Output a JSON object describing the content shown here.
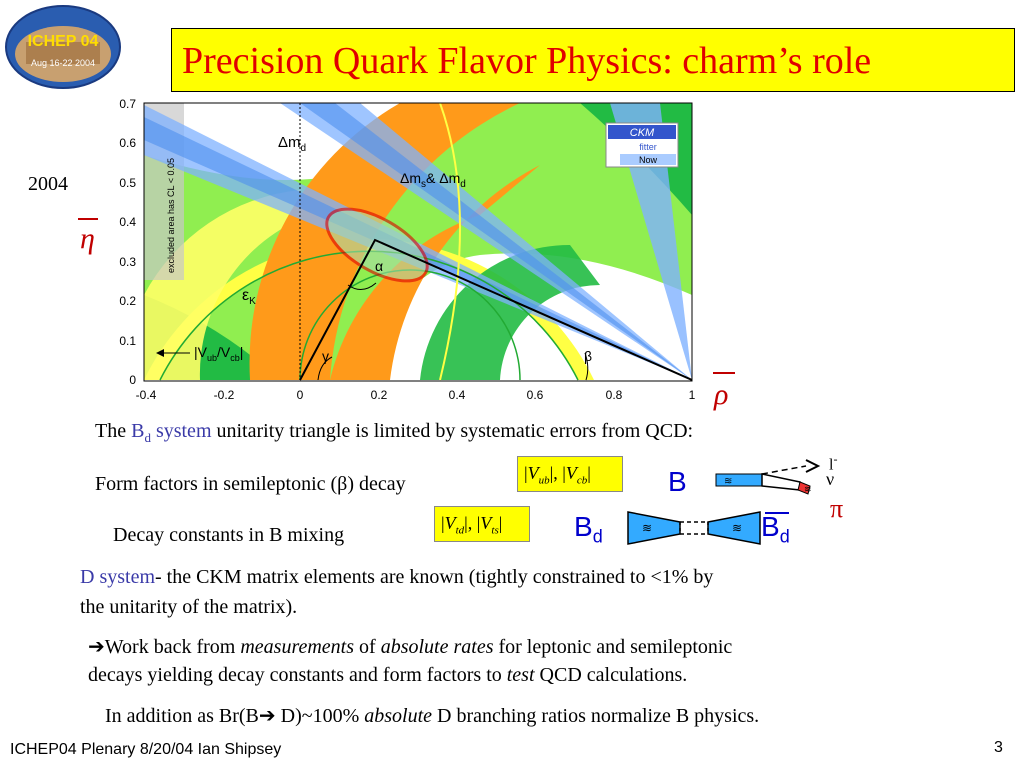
{
  "logo": {
    "name": "ICHEP 04",
    "sub": "Aug 16-22 2004"
  },
  "title": "Precision Quark Flavor Physics: charm’s role",
  "year": "2004",
  "axis_eta": "η",
  "axis_rho": "ρ",
  "chart_data": {
    "type": "diagram",
    "xlim": [
      -0.4,
      1
    ],
    "ylim": [
      0,
      0.7
    ],
    "x_ticks": [
      "-0.4",
      "-0.2",
      "0",
      "0.2",
      "0.4",
      "0.6",
      "0.8",
      "1"
    ],
    "y_ticks": [
      "0",
      "0.1",
      "0.2",
      "0.3",
      "0.4",
      "0.5",
      "0.6",
      "0.7"
    ],
    "labels": {
      "dmd": "Δm",
      "dmd_sub": "d",
      "dms": "Δm",
      "dms_sub1": "s",
      "dms_amp": "& Δm",
      "dms_sub2": "d",
      "eps": "ε",
      "eps_sub": "K",
      "vub": "|V",
      "vub_sub1": "ub",
      "vub_mid": "/V",
      "vub_sub2": "cb",
      "vub_end": "|",
      "alpha": "α",
      "beta": "β",
      "gamma": "γ",
      "excluded": "excluded area has CL < 0.05"
    },
    "legend": {
      "l1": "CKM",
      "l2": "fitter",
      "l3": "Now"
    },
    "apex": {
      "x": 0.2,
      "y": 0.355
    }
  },
  "line1": {
    "pre": "The ",
    "b": "B",
    "sub": "d",
    "sys": " system",
    "post": " unitarity triangle is limited  by systematic errors from QCD:"
  },
  "line2": {
    "text": "Form factors in semileptonic (β) decay"
  },
  "line3": {
    "text": "Decay constants in B mixing"
  },
  "formula1": {
    "v1": "V",
    "s1": "ub",
    "comma": ",",
    "v2": "V",
    "s2": "cb"
  },
  "formula2": {
    "v1": "V",
    "s1": "td",
    "comma": ",",
    "v2": "V",
    "s2": "ts"
  },
  "diag": {
    "B": "B",
    "l": "l",
    "minus": "-",
    "nu": "ν",
    "pi": "π",
    "Bd": "B",
    "d": "d",
    "Bdbar": "B",
    "dbar": "d"
  },
  "para1": {
    "dsys": "D system",
    "rest1": "- the CKM  matrix elements are known (tightly constrained to <1% by",
    "rest2": "the unitarity of the matrix)."
  },
  "para2": {
    "arrow": "➔",
    "a": "Work back from ",
    "m": "measurements",
    "b": " of ",
    "ar": "absolute rates",
    "c": " for leptonic and semileptonic",
    "line2a": "decays yielding decay constants and form factors to ",
    "test": "test",
    "line2b": " QCD calculations."
  },
  "para3": {
    "a": "In addition as Br(B",
    "arrow": "➔",
    "b": " D)~100% ",
    "abs": "absolute",
    "c": " D branching ratios normalize B physics."
  },
  "footer": {
    "left": "ICHEP04 Plenary 8/20/04 Ian Shipsey",
    "page": "3"
  }
}
